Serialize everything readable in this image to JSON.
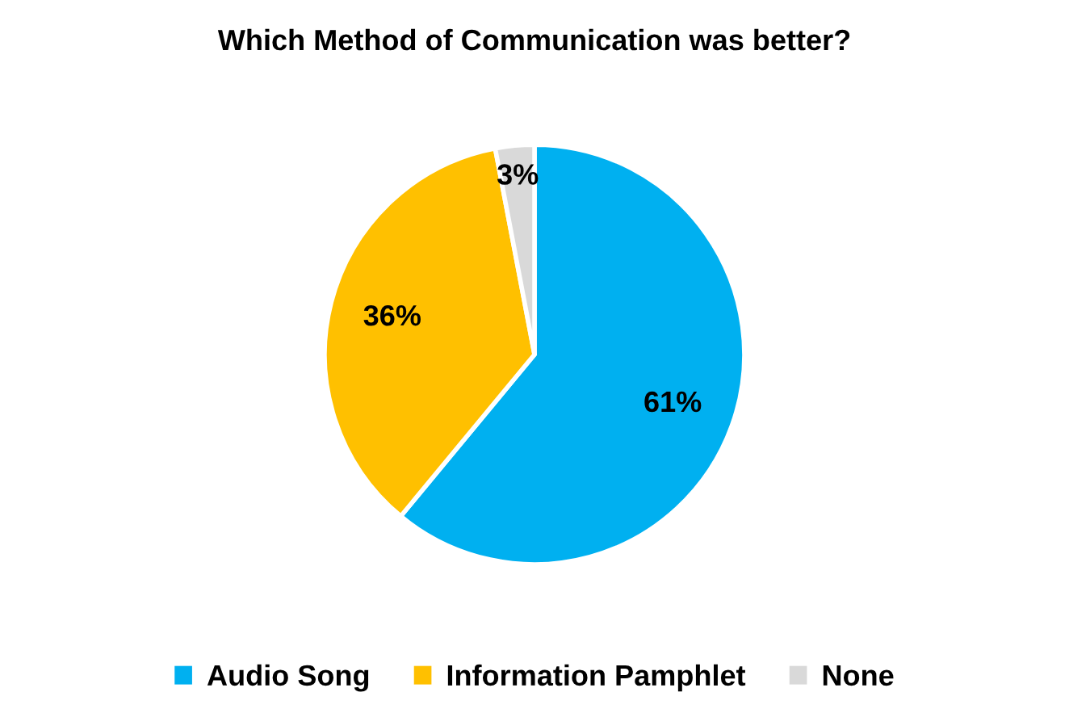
{
  "chart_data": {
    "type": "pie",
    "title": "Which Method of Communication was better?",
    "categories": [
      "Audio Song",
      "Information Pamphlet",
      "None"
    ],
    "values": [
      61,
      36,
      3
    ],
    "colors": [
      "#00b0f0",
      "#ffc000",
      "#d9d9d9"
    ],
    "value_labels": [
      "61%",
      "36%",
      "3%"
    ],
    "legend": "bottom"
  }
}
